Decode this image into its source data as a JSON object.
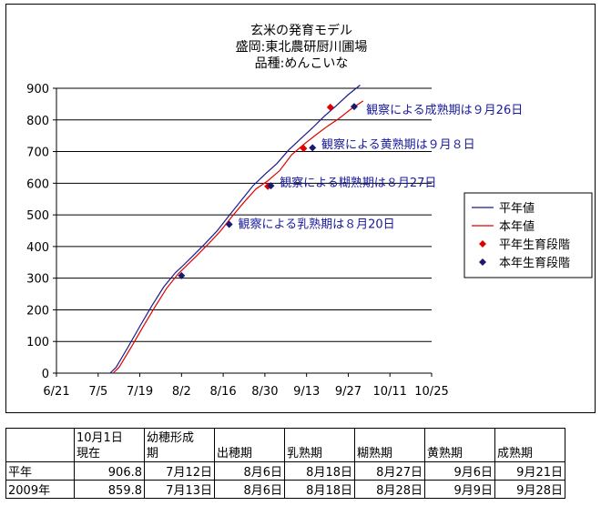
{
  "chart_data": {
    "type": "line",
    "title": [
      "玄米の発育モデル",
      "盛岡:東北農研厨川圃場",
      "品種:めんこいな"
    ],
    "ylim": [
      0,
      900
    ],
    "yticks": [
      0,
      100,
      200,
      300,
      400,
      500,
      600,
      700,
      800,
      900
    ],
    "xticks": [
      "6/21",
      "7/5",
      "7/19",
      "8/2",
      "8/16",
      "8/30",
      "9/13",
      "9/27",
      "10/11",
      "10/25"
    ],
    "xtick_days": [
      0,
      14,
      28,
      42,
      56,
      70,
      84,
      98,
      112,
      126
    ],
    "grid": "horizontal",
    "legend_position": "right",
    "series": [
      {
        "name": "平年値",
        "color": "#1a1a8c",
        "x": [
          18,
          20,
          24,
          28,
          32,
          36,
          40,
          42,
          46,
          50,
          54,
          58,
          62,
          66,
          70,
          74,
          78,
          82,
          86,
          90,
          94,
          98,
          102
        ],
        "y": [
          0,
          18,
          82,
          148,
          212,
          272,
          318,
          335,
          372,
          410,
          450,
          498,
          545,
          592,
          628,
          662,
          705,
          740,
          775,
          812,
          845,
          880,
          910
        ]
      },
      {
        "name": "本年値",
        "color": "#e00000",
        "x": [
          19,
          21,
          25,
          29,
          33,
          37,
          41,
          43,
          47,
          51,
          55,
          59,
          63,
          67,
          71,
          75,
          79,
          83,
          87,
          91,
          95,
          99,
          103
        ],
        "y": [
          0,
          18,
          80,
          145,
          208,
          268,
          315,
          333,
          370,
          408,
          448,
          495,
          540,
          582,
          608,
          640,
          690,
          722,
          752,
          780,
          805,
          835,
          860
        ]
      }
    ],
    "markers": [
      {
        "name": "平年生育段階",
        "color": "#e00000",
        "points": [
          [
            83,
            710
          ],
          [
            71,
            590
          ],
          [
            92,
            840
          ]
        ]
      },
      {
        "name": "本年生育段階",
        "color": "#1a1a6e",
        "points": [
          [
            42,
            308
          ],
          [
            58,
            470
          ],
          [
            72,
            592
          ],
          [
            86,
            712
          ],
          [
            100,
            842
          ]
        ]
      }
    ],
    "annotations": [
      {
        "text": "観察による成熟期は９月26日",
        "x": 104,
        "y": 820
      },
      {
        "text": "観察による黄熟期は９月８日",
        "x": 89,
        "y": 710
      },
      {
        "text": "観察による糊熟期は８月27日",
        "x": 75,
        "y": 590
      },
      {
        "text": "観察による乳熟期は８月20日",
        "x": 61,
        "y": 458
      }
    ]
  },
  "table": {
    "header": [
      "",
      "10月1日\n現在",
      "幼穂形成\n期",
      "出穂期",
      "乳熟期",
      "糊熟期",
      "黄熟期",
      "成熟期"
    ],
    "rows": [
      [
        "平年",
        "906.8",
        "7月12日",
        "8月6日",
        "8月18日",
        "8月27日",
        "9月6日",
        "9月21日"
      ],
      [
        "2009年",
        "859.8",
        "7月13日",
        "8月6日",
        "8月18日",
        "8月28日",
        "9月9日",
        "9月28日"
      ]
    ]
  }
}
